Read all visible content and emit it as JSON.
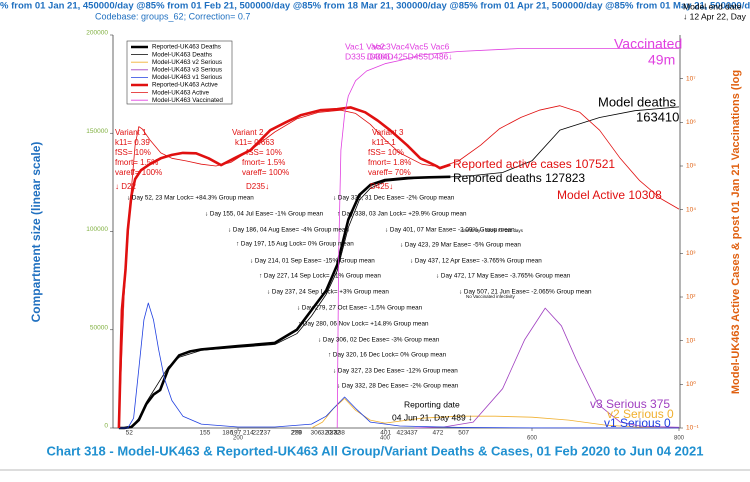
{
  "header": {
    "banner": "% from 01 Jan 21, 450000/day @85% from 01 Feb 21, 500000/day @85% from 18 Mar 21, 300000/day @85% from 01 Apr 21, 500000/day @85% from 01 May 21, 500000/day",
    "codebase": "Codebase: groups_62; Correction= 0.7",
    "end_date": "Model end date",
    "end_day": "↓ 12 Apr 22, Day"
  },
  "chart_data": {
    "type": "line",
    "title": "Chart 318 - Model-UK463 & Reported-UK463 All Group/Variant Deaths & Cases, 01 Feb 2020 to Jun 04 2021",
    "y_label": "Compartment size (linear scale)",
    "y2_label": "Model-UK463 Active Cases & post 01 Jan 21 Vaccinations (log",
    "xlim": [
      30,
      800
    ],
    "xticks": [
      200,
      400,
      600,
      800
    ],
    "ylim": [
      0,
      200000
    ],
    "yticks": [
      0,
      50000,
      100000,
      150000,
      200000
    ],
    "y2lim": [
      0.1,
      100000000
    ],
    "y2scale": "log",
    "y2ticks": [
      {
        "value": 0.1,
        "label": "10⁻¹"
      },
      {
        "value": 1,
        "label": "10⁰"
      },
      {
        "value": 10,
        "label": "10¹"
      },
      {
        "value": 100,
        "label": "10²"
      },
      {
        "value": 1000,
        "label": "10³"
      },
      {
        "value": 10000,
        "label": "10⁴"
      },
      {
        "value": 100000,
        "label": "10⁵"
      },
      {
        "value": 1000000,
        "label": "10⁶"
      },
      {
        "value": 10000000,
        "label": "10⁷"
      }
    ],
    "legend": "upper left",
    "event_days": [
      52,
      155,
      186,
      197,
      214,
      227,
      237,
      279,
      280,
      306,
      320,
      327,
      332,
      338,
      401,
      423,
      437,
      472,
      507
    ],
    "series": [
      {
        "name": "Reported-UK463 Deaths",
        "color": "#000000",
        "line_width": 2.6,
        "x": [
          38,
          45,
          55,
          65,
          75,
          85,
          94,
          105,
          120,
          135,
          150,
          200,
          250,
          280,
          300,
          320,
          335,
          350,
          365,
          380,
          400,
          430,
          460,
          489
        ],
        "values": [
          0,
          0,
          500,
          4000,
          12000,
          17000,
          19300,
          30000,
          37000,
          39000,
          40000,
          41700,
          43300,
          50000,
          60000,
          70000,
          83000,
          106000,
          118600,
          123700,
          126200,
          127200,
          127600,
          127823
        ]
      },
      {
        "name": "Model-UK463 Deaths",
        "color": "#000000",
        "line_width": 0.8,
        "x": [
          38,
          55,
          65,
          75,
          90,
          105,
          120,
          150,
          200,
          250,
          280,
          300,
          320,
          335,
          350,
          365,
          380,
          400,
          450,
          489,
          520,
          560,
          600,
          638,
          692,
          740,
          800
        ],
        "values": [
          0,
          500,
          5000,
          13000,
          22000,
          31000,
          36000,
          39500,
          41000,
          42500,
          48000,
          57000,
          68000,
          80000,
          102000,
          116000,
          122000,
          125500,
          127300,
          127800,
          128500,
          130000,
          136000,
          151600,
          158000,
          161500,
          163410
        ]
      },
      {
        "name": "Model-UK463 v2 Serious",
        "color": "#f0b030",
        "line_width": 0.8,
        "x": [
          300,
          315,
          330,
          345,
          360,
          380,
          400,
          450,
          500,
          550,
          600,
          650,
          700,
          750,
          800
        ],
        "values": [
          0,
          3000,
          10000,
          15000,
          9000,
          4000,
          2500,
          5000,
          6000,
          6000,
          5500,
          4000,
          1500,
          300,
          0
        ]
      },
      {
        "name": "Model-UK463 v3 Serious",
        "color": "#a040c0",
        "line_width": 0.8,
        "x": [
          440,
          480,
          520,
          560,
          590,
          618,
          640,
          660,
          690,
          720,
          750,
          800
        ],
        "values": [
          0,
          500,
          3000,
          20000,
          45000,
          61000,
          52000,
          35000,
          12000,
          3000,
          800,
          375
        ]
      },
      {
        "name": "Model-UK463 v1 Serious",
        "color": "#2040e0",
        "line_width": 0.8,
        "x": [
          38,
          50,
          58,
          65,
          72,
          78,
          85,
          92,
          100,
          110,
          125,
          150,
          200,
          250,
          300,
          320,
          330,
          345,
          360,
          380,
          420,
          500,
          600,
          800
        ],
        "values": [
          0,
          0,
          5000,
          30000,
          55000,
          63600,
          55000,
          40000,
          25000,
          14000,
          6000,
          2000,
          500,
          500,
          2000,
          6000,
          10000,
          15800,
          10000,
          3000,
          1000,
          300,
          50,
          0
        ]
      },
      {
        "name": "Reported-UK463 Active",
        "color": "#e01010",
        "line_width": 2.6,
        "axis": "y2",
        "x": [
          38,
          42,
          47,
          50,
          55,
          60,
          68,
          80,
          95,
          110,
          125,
          143,
          160,
          177,
          195,
          217,
          244,
          265,
          285,
          312,
          335,
          353,
          373,
          390,
          407,
          430,
          448,
          470,
          475,
          489
        ],
        "values": [
          0.1,
          50,
          417,
          3400,
          21000,
          50000,
          80000,
          110000,
          150000,
          180000,
          200000,
          195000,
          150000,
          105000,
          150000,
          230000,
          660000,
          1000000,
          1450000,
          1900000,
          2000000,
          2200000,
          1700000,
          1100000,
          660000,
          300000,
          150000,
          100000,
          89000,
          107521
        ]
      },
      {
        "name": "Model-UK463 Active",
        "color": "#e01010",
        "line_width": 0.8,
        "axis": "y2",
        "x": [
          38,
          45,
          50,
          55,
          60,
          65,
          70,
          80,
          95,
          110,
          130,
          150,
          170,
          190,
          220,
          250,
          280,
          310,
          340,
          360,
          380,
          400,
          420,
          450,
          475,
          500,
          530,
          556,
          585,
          610,
          638,
          665,
          692,
          720,
          746,
          775,
          800
        ],
        "values": [
          0.1,
          100,
          2000,
          30000,
          300000,
          800000,
          700000,
          400000,
          200000,
          150000,
          130000,
          110000,
          100000,
          120000,
          250000,
          600000,
          1200000,
          1700000,
          1900000,
          1600000,
          900000,
          400000,
          200000,
          110000,
          95000,
          130000,
          300000,
          720000,
          1300000,
          1900000,
          2400000,
          1700000,
          660000,
          150000,
          47000,
          18000,
          10308
        ]
      },
      {
        "name": "Model-UK463 Vaccinated",
        "color": "#e040e0",
        "line_width": 0.8,
        "axis": "y2",
        "x": [
          335,
          337,
          340,
          345,
          350,
          360,
          375,
          400,
          420,
          450,
          500,
          550,
          584,
          650,
          700,
          800
        ],
        "values": [
          0.1,
          1000,
          230000,
          1500000,
          4000000,
          9000000,
          15000000,
          22000000,
          26000000,
          35000000,
          42000000,
          46000000,
          49000000,
          49000000,
          49000000,
          49000000
        ]
      }
    ],
    "annotations": [
      {
        "text": "Variant 1",
        "color": "#e01010"
      },
      {
        "text": "k11= 0.39",
        "color": "#e01010"
      },
      {
        "text": "fSS= 10%",
        "color": "#e01010"
      },
      {
        "text": "fmort= 1.5%",
        "color": "#e01010"
      },
      {
        "text": "vareff= 100%",
        "color": "#e01010"
      },
      {
        "text": "↓ D22",
        "color": "#e01010"
      },
      {
        "text": "Variant 2",
        "color": "#e01010"
      },
      {
        "text": "k11= 0.663",
        "color": "#e01010"
      },
      {
        "text": "fSS= 10%",
        "color": "#e01010"
      },
      {
        "text": "fmort= 1.5%",
        "color": "#e01010"
      },
      {
        "text": "vareff= 100%",
        "color": "#e01010"
      },
      {
        "text": "D235↓",
        "color": "#e01010"
      },
      {
        "text": "Variant 3",
        "color": "#e01010"
      },
      {
        "text": "k11= 1",
        "color": "#e01010"
      },
      {
        "text": "fSS= 10%",
        "color": "#e01010"
      },
      {
        "text": "fmort= 1.8%",
        "color": "#e01010"
      },
      {
        "text": "vareff= 70%",
        "color": "#e01010"
      },
      {
        "text": "D425↓",
        "color": "#e01010"
      },
      {
        "text": "Vac1 Vac2",
        "color": "#e040e0"
      },
      {
        "text": "D335↓D366↓",
        "color": "#e040e0"
      },
      {
        "text": "Vac3Vac4Vac5 Vac6",
        "color": "#e040e0"
      },
      {
        "text": "D404D425D455D486↓",
        "color": "#e040e0"
      },
      {
        "text": "↓ Day 52, 23 Mar Lock= +84.3% Group mean",
        "color": "#000000"
      },
      {
        "text": "↓ Day 155, 04 Jul Ease= -1% Group mean",
        "color": "#000000"
      },
      {
        "text": "↓ Day 186, 04 Aug Ease= -4% Group mean",
        "color": "#000000"
      },
      {
        "text": "↑ Day 197, 15 Aug Lock= 0% Group mean",
        "color": "#000000"
      },
      {
        "text": "↓ Day 214, 01 Sep Ease= -15% Group mean",
        "color": "#000000"
      },
      {
        "text": "↑ Day 227, 14 Sep Lock= +1% Group mean",
        "color": "#000000"
      },
      {
        "text": "↓ Day 237, 24 Sep Lock= +3% Group mean",
        "color": "#000000"
      },
      {
        "text": "↓ Day 279, 27 Oct Ease= -1.5% Group mean",
        "color": "#000000"
      },
      {
        "text": "↑ Day 280, 06 Nov Lock= +14.8% Group mean",
        "color": "#000000"
      },
      {
        "text": "↓ Day 306, 02 Dec Ease= -3% Group mean",
        "color": "#000000"
      },
      {
        "text": "↑ Day 320, 16 Dec Lock= 0% Group mean",
        "color": "#000000"
      },
      {
        "text": "↓ Day 327, 23 Dec Ease= -12% Group mean",
        "color": "#000000"
      },
      {
        "text": "↓ Day 332, 28 Dec Ease= -2% Group mean",
        "color": "#000000"
      },
      {
        "text": "↓ Day 332, 31 Dec Ease= -2% Group mean",
        "color": "#000000"
      },
      {
        "text": "↑ Day 338, 03 Jan Lock= +29.9% Group mean",
        "color": "#000000"
      },
      {
        "text": "↓ Day 401, 07 Mar Ease= -2.09% Group mean",
        "color": "#000000"
      },
      {
        "text": "↓ Day 423, 29 Mar Ease= -5% Group mean",
        "color": "#000000"
      },
      {
        "text": "↓ Day 437, 12 Apr Ease= -3.765% Group mean",
        "color": "#000000"
      },
      {
        "text": "↓ Day 472, 17 May Ease= -3.765% Group mean",
        "color": "#000000"
      },
      {
        "text": "↓ Day 507, 21 Jun Ease= -2.065% Group mean",
        "color": "#000000"
      },
      {
        "text": "Immunity = 100% for 150 days",
        "color": "#000000"
      },
      {
        "text": "No Vaccinated infectivity",
        "color": "#000000"
      },
      {
        "text": "Reporting date",
        "color": "#000000"
      },
      {
        "text": "04 Jun 21, Day 489 ↓",
        "color": "#000000"
      },
      {
        "text": "Vaccinated",
        "color": "#e040e0"
      },
      {
        "text": "49m",
        "color": "#e040e0"
      },
      {
        "text": "Model deaths",
        "color": "#000000"
      },
      {
        "text": "163410",
        "color": "#000000"
      },
      {
        "text": "Reported active cases 107521",
        "color": "#e01010"
      },
      {
        "text": "Reported deaths 127823",
        "color": "#000000"
      },
      {
        "text": "Model Active 10308",
        "color": "#e01010"
      },
      {
        "text": "v3 Serious 375",
        "color": "#a040c0"
      },
      {
        "text": "v2 Serious 0",
        "color": "#f0b030"
      },
      {
        "text": "v1 Serious 0",
        "color": "#2040e0"
      }
    ]
  }
}
